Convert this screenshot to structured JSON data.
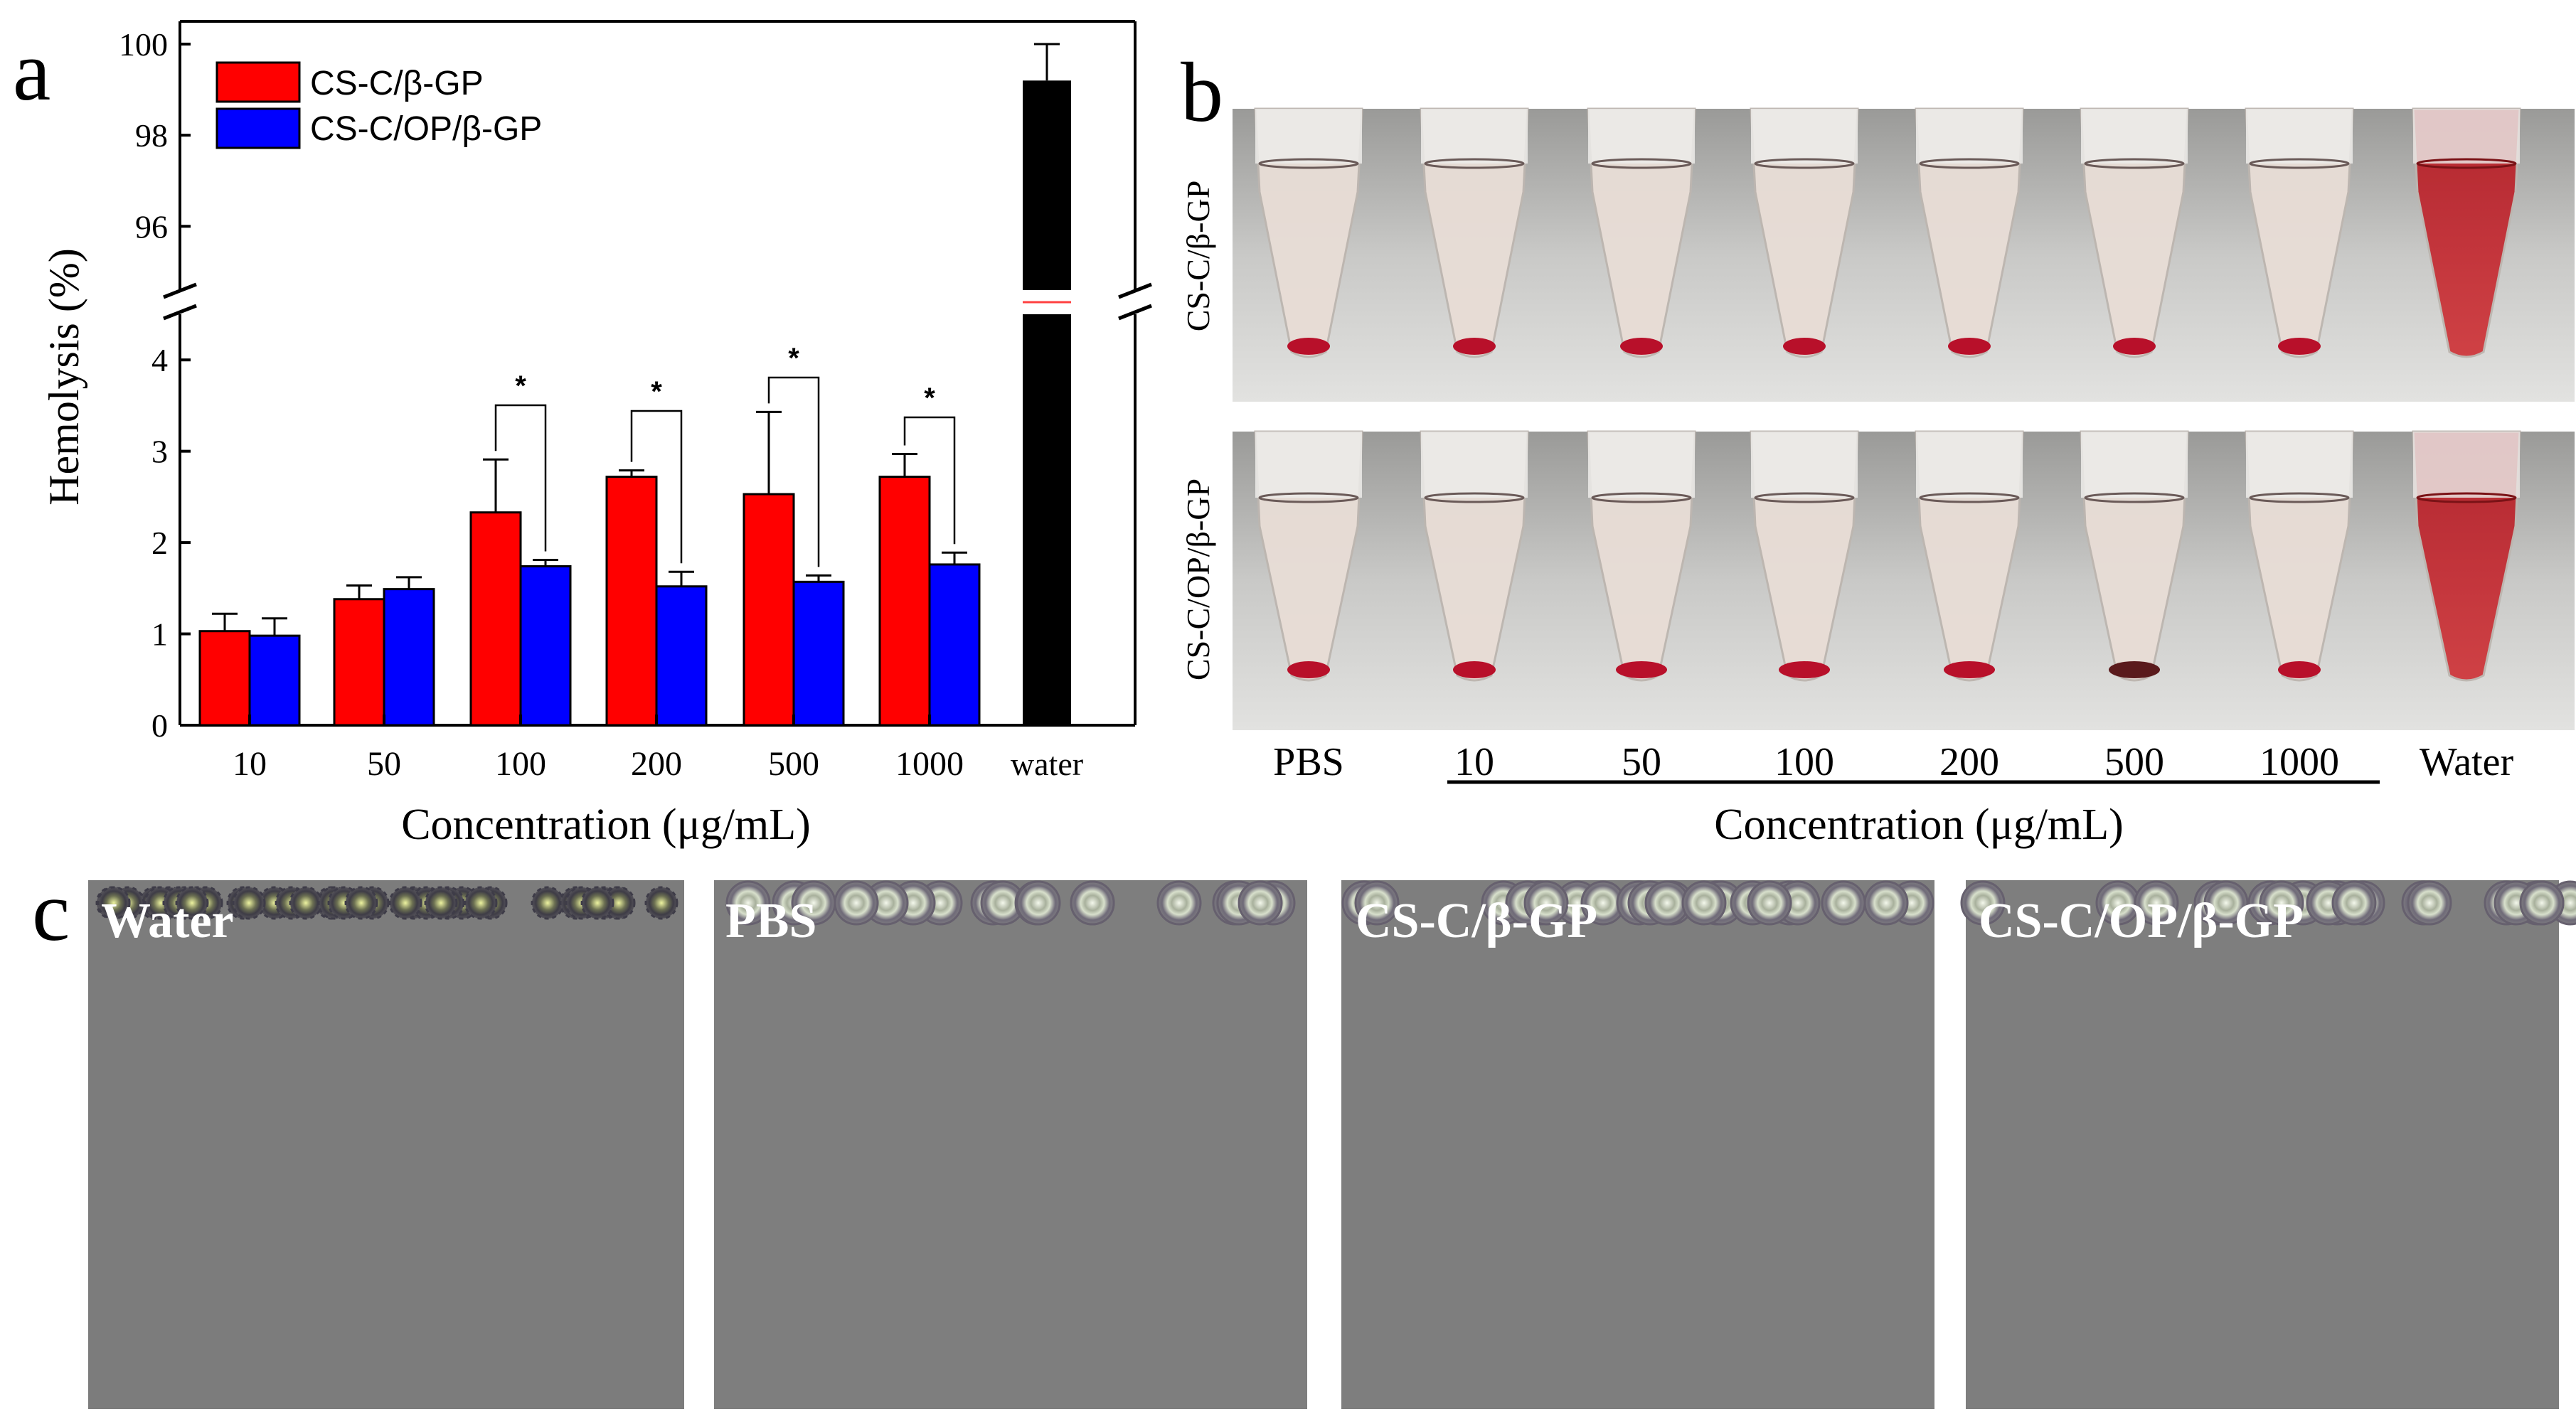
{
  "panel_a": {
    "letter": "a",
    "chart_data": {
      "type": "bar",
      "title": "",
      "xlabel": "Concentration (μg/mL)",
      "ylabel": "Hemolysis (%)",
      "categories": [
        "10",
        "50",
        "100",
        "200",
        "500",
        "1000",
        "water"
      ],
      "series": [
        {
          "name": "CS-C/β-GP",
          "color": "#ff0000",
          "values": [
            1.03,
            1.38,
            2.33,
            2.72,
            2.53,
            2.72,
            null
          ],
          "errors": [
            0.19,
            0.15,
            0.58,
            0.07,
            0.9,
            0.25,
            null
          ]
        },
        {
          "name": "CS-C/OP/β-GP",
          "color": "#0000ff",
          "values": [
            0.98,
            1.49,
            1.74,
            1.52,
            1.57,
            1.76,
            null
          ],
          "errors": [
            0.19,
            0.13,
            0.07,
            0.16,
            0.07,
            0.13,
            null
          ]
        },
        {
          "name": "water",
          "color": "#000000",
          "values": [
            null,
            null,
            null,
            null,
            null,
            null,
            99.2
          ],
          "errors": [
            null,
            null,
            null,
            null,
            null,
            null,
            0.8
          ]
        }
      ],
      "axis_break": {
        "lower_range": [
          0,
          4.5
        ],
        "upper_range": [
          94.6,
          100.5
        ]
      },
      "lower_ticks": [
        "0",
        "1",
        "2",
        "3",
        "4"
      ],
      "upper_ticks": [
        "96",
        "98",
        "100"
      ],
      "significance": [
        "*",
        "*",
        "*",
        "*"
      ],
      "legend": {
        "position": "top-left",
        "entries": [
          "CS-C/β-GP",
          "CS-C/OP/β-GP"
        ]
      }
    }
  },
  "panel_b": {
    "letter": "b",
    "row_labels": [
      "CS-C/β-GP",
      "CS-C/OP/β-GP"
    ],
    "tube_labels": [
      "PBS",
      "10",
      "50",
      "100",
      "200",
      "500",
      "1000",
      "Water"
    ],
    "xlabel": "Concentration (μg/mL)"
  },
  "panel_c": {
    "letter": "c",
    "images": [
      {
        "label": "Water"
      },
      {
        "label": "PBS"
      },
      {
        "label": "CS-C/β-GP"
      },
      {
        "label": "CS-C/OP/β-GP"
      }
    ]
  }
}
